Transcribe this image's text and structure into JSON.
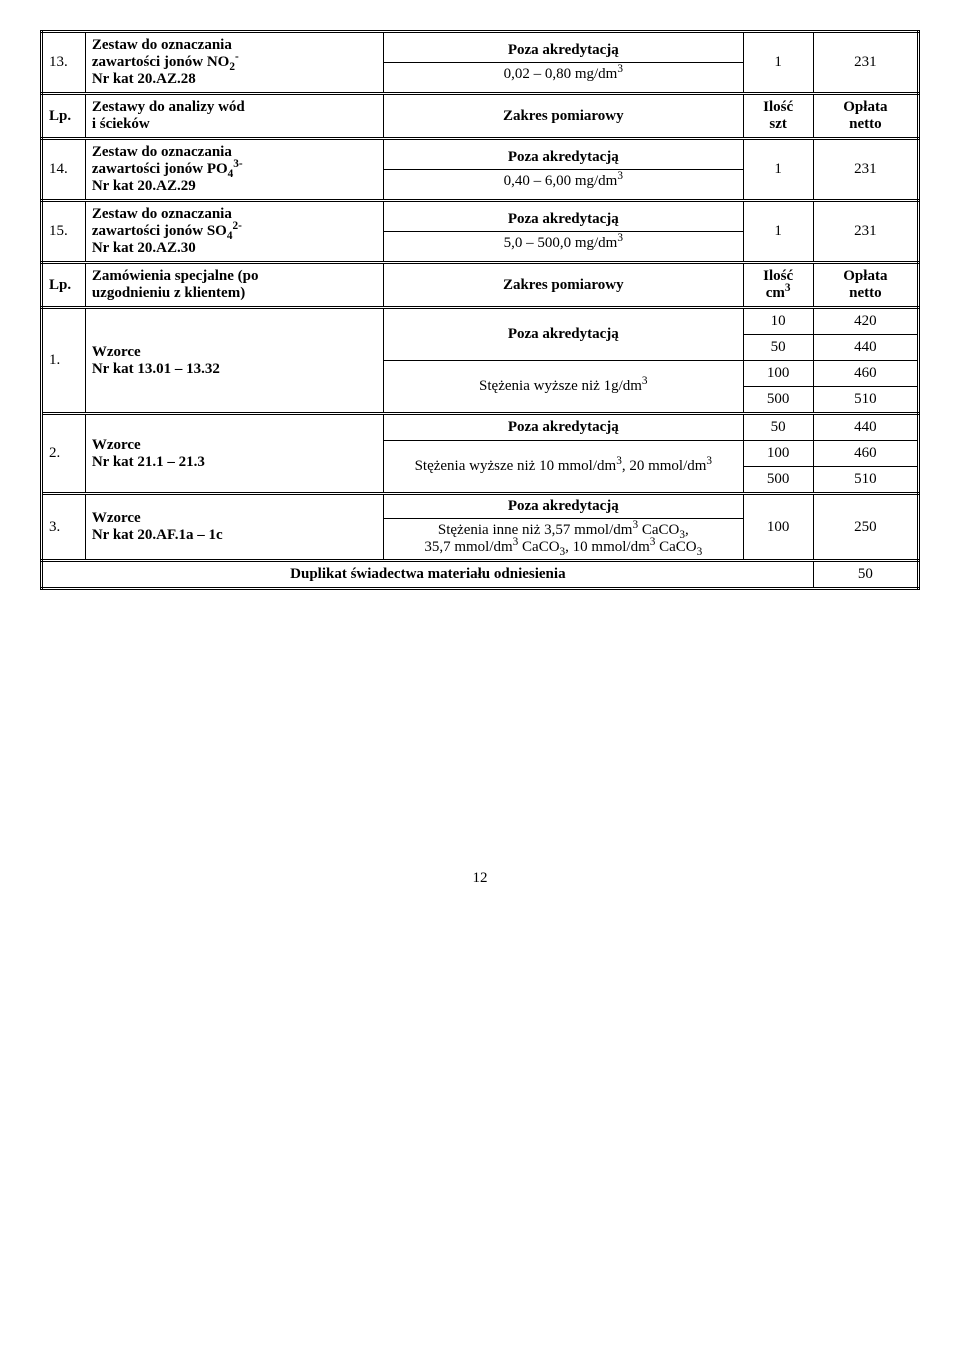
{
  "rows": {
    "r13": {
      "lp": "13.",
      "name1": "Zestaw do oznaczania",
      "name2": "zawartości jonów NO",
      "name2_sub": "2",
      "name2_sup": "-",
      "name3": "Nr kat 20.AZ.28",
      "top": "Poza akredytacją",
      "bot": "0,02 – 0,80 mg/dm",
      "bot_sup": "3",
      "qty": "1",
      "price": "231"
    },
    "hdr1": {
      "lp": "Lp.",
      "name1": "Zestawy do analizy wód",
      "name2": "i ścieków",
      "range": "Zakres pomiarowy",
      "qty1": "Ilość",
      "qty2": "szt",
      "price1": "Opłata",
      "price2": "netto"
    },
    "r14": {
      "lp": "14.",
      "name1": "Zestaw do oznaczania",
      "name2": "zawartości jonów PO",
      "name2_sub": "4",
      "name2_sup": "3-",
      "name3": "Nr kat 20.AZ.29",
      "top": "Poza akredytacją",
      "bot": "0,40 – 6,00 mg/dm",
      "bot_sup": "3",
      "qty": "1",
      "price": "231"
    },
    "r15": {
      "lp": "15.",
      "name1": "Zestaw do oznaczania",
      "name2": "zawartości jonów SO",
      "name2_sub": "4",
      "name2_sup": "2-",
      "name3": "Nr kat 20.AZ.30",
      "top": "Poza akredytacją",
      "bot": "5,0 – 500,0 mg/dm",
      "bot_sup": "3",
      "qty": "1",
      "price": "231"
    },
    "hdr2": {
      "lp": "Lp.",
      "name1": "Zamówienia specjalne (po",
      "name2": "uzgodnieniu z klientem)",
      "range": "Zakres pomiarowy",
      "qty1": "Ilość",
      "qty2": "cm",
      "qty2_sup": "3",
      "price1": "Opłata",
      "price2": "netto"
    },
    "r1": {
      "lp": "1.",
      "name1": "Wzorce",
      "name2": "Nr kat 13.01 – 13.32",
      "top": "Poza akredytacją",
      "bot": "Stężenia wyższe niż 1g/dm",
      "bot_sup": "3",
      "q1": "10",
      "p1": "420",
      "q2": "50",
      "p2": "440",
      "q3": "100",
      "p3": "460",
      "q4": "500",
      "p4": "510"
    },
    "r2": {
      "lp": "2.",
      "name1": "Wzorce",
      "name2": "Nr kat 21.1 – 21.3",
      "top": "Poza akredytacją",
      "bot1": "Stężenia wyższe niż 10 mmol/dm",
      "bot1_sup": "3",
      "bot2": ", 20 mmol/dm",
      "bot2_sup": "3",
      "q1": "50",
      "p1": "440",
      "q2": "100",
      "p2": "460",
      "q3": "500",
      "p3": "510"
    },
    "r3": {
      "lp": "3.",
      "name1": "Wzorce",
      "name2": "Nr kat 20.AF.1a – 1c",
      "top": "Poza akredytacją",
      "l2a": "Stężenia inne niż 3,57 mmol/dm",
      "l2a_sup": "3",
      "l2b": " CaCO",
      "l2b_sub": "3",
      "l2c": ",",
      "l3a": "35,7 mmol/dm",
      "l3a_sup": "3",
      "l3b": " CaCO",
      "l3b_sub": "3",
      "l3c": ", 10 mmol/dm",
      "l3c_sup": "3",
      "l3d": " CaCO",
      "l3d_sub": "3",
      "qty": "100",
      "price": "250"
    },
    "dup": {
      "label": "Duplikat świadectwa materiału odniesienia",
      "price": "50"
    }
  },
  "page": "12"
}
